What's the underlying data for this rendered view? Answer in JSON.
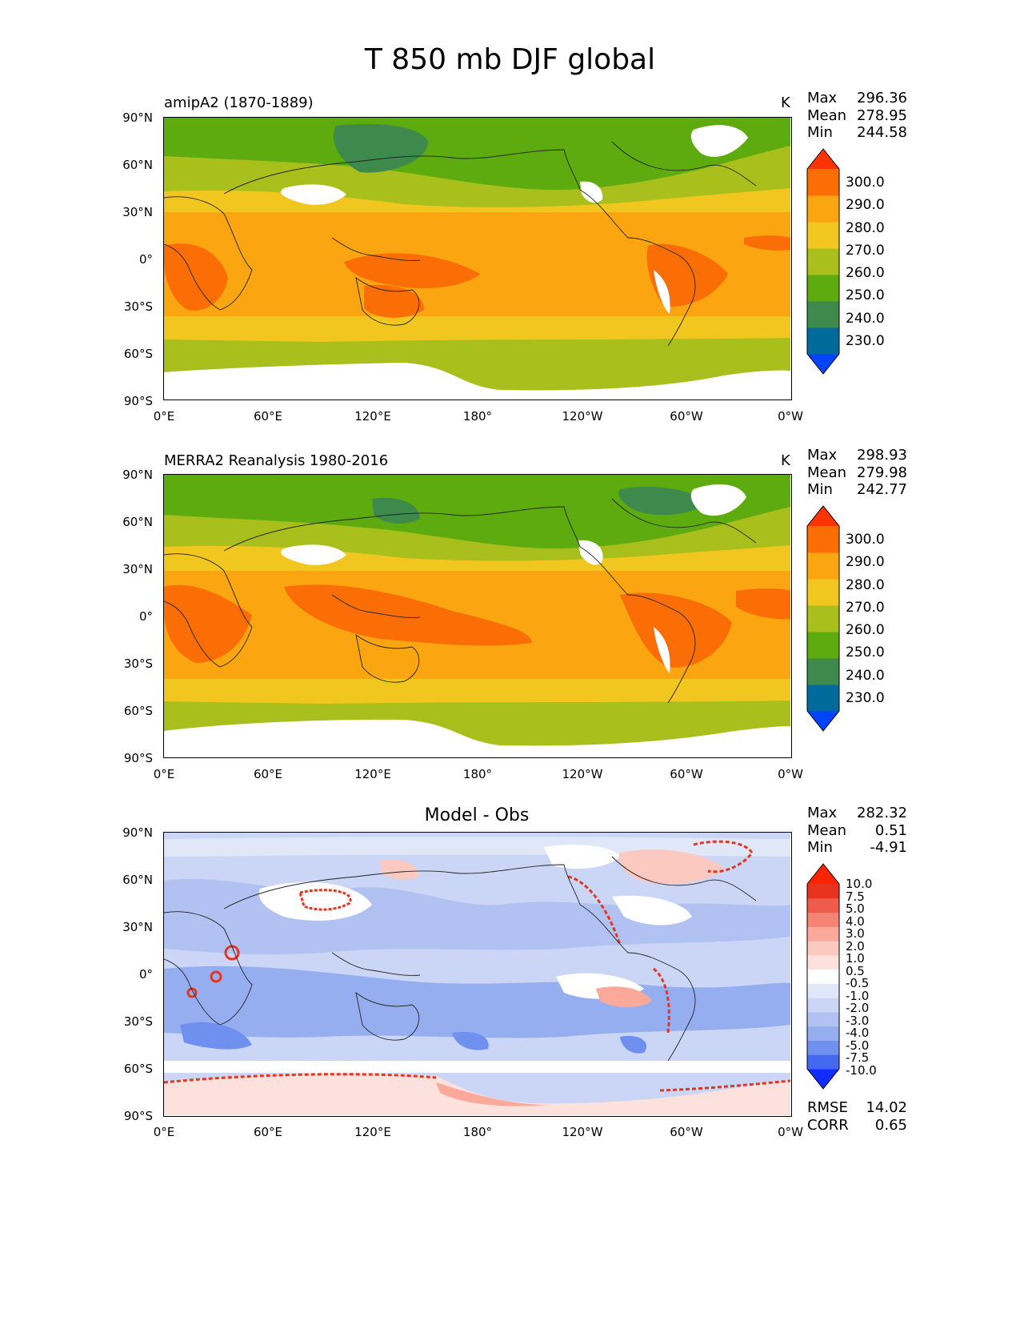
{
  "figure_title": "T 850 mb DJF global",
  "panels": [
    {
      "title": "amipA2 (1870-1889)",
      "units": "K",
      "stats": {
        "max_label": "Max",
        "max": "296.36",
        "mean_label": "Mean",
        "mean": "278.95",
        "min_label": "Min",
        "min": "244.58"
      },
      "colorbar_labels": [
        "300.0",
        "290.0",
        "280.0",
        "270.0",
        "260.0",
        "250.0",
        "240.0",
        "230.0"
      ]
    },
    {
      "title": "MERRA2 Reanalysis 1980-2016",
      "units": "K",
      "stats": {
        "max_label": "Max",
        "max": "298.93",
        "mean_label": "Mean",
        "mean": "279.98",
        "min_label": "Min",
        "min": "242.77"
      },
      "colorbar_labels": [
        "300.0",
        "290.0",
        "280.0",
        "270.0",
        "260.0",
        "250.0",
        "240.0",
        "230.0"
      ]
    },
    {
      "title": "Model - Obs",
      "units": "",
      "stats": {
        "max_label": "Max",
        "max": "282.32",
        "mean_label": "Mean",
        "mean": "0.51",
        "min_label": "Min",
        "min": "-4.91"
      },
      "colorbar_labels": [
        "10.0",
        "7.5",
        "5.0",
        "4.0",
        "3.0",
        "2.0",
        "1.0",
        "0.5",
        "-0.5",
        "-1.0",
        "-2.0",
        "-3.0",
        "-4.0",
        "-5.0",
        "-7.5",
        "-10.0"
      ],
      "error_stats": {
        "rmse_label": "RMSE",
        "rmse": "14.02",
        "corr_label": "CORR",
        "corr": "0.65"
      }
    }
  ],
  "lat_ticks": [
    "90°N",
    "60°N",
    "30°N",
    "0°",
    "30°S",
    "60°S",
    "90°S"
  ],
  "lon_ticks": [
    "0°E",
    "60°E",
    "120°E",
    "180°",
    "120°W",
    "60°W",
    "0°W"
  ],
  "colors": {
    "abs_levels": [
      "#0044ff",
      "#006a9a",
      "#3d8a4c",
      "#5eab0f",
      "#a8bf1c",
      "#f1c71f",
      "#fba510",
      "#fb6d05",
      "#ff3404"
    ],
    "diff_levels": [
      "#0f2eff",
      "#4369f0",
      "#6f90ee",
      "#94aef0",
      "#b1c2f2",
      "#cbd6f6",
      "#e0e7f9",
      "#ffffff",
      "#fde1dc",
      "#fcc9c0",
      "#faa99b",
      "#f48473",
      "#ef5c4a",
      "#e8331f",
      "#ff2400"
    ],
    "land_missing": "#ffffff"
  }
}
